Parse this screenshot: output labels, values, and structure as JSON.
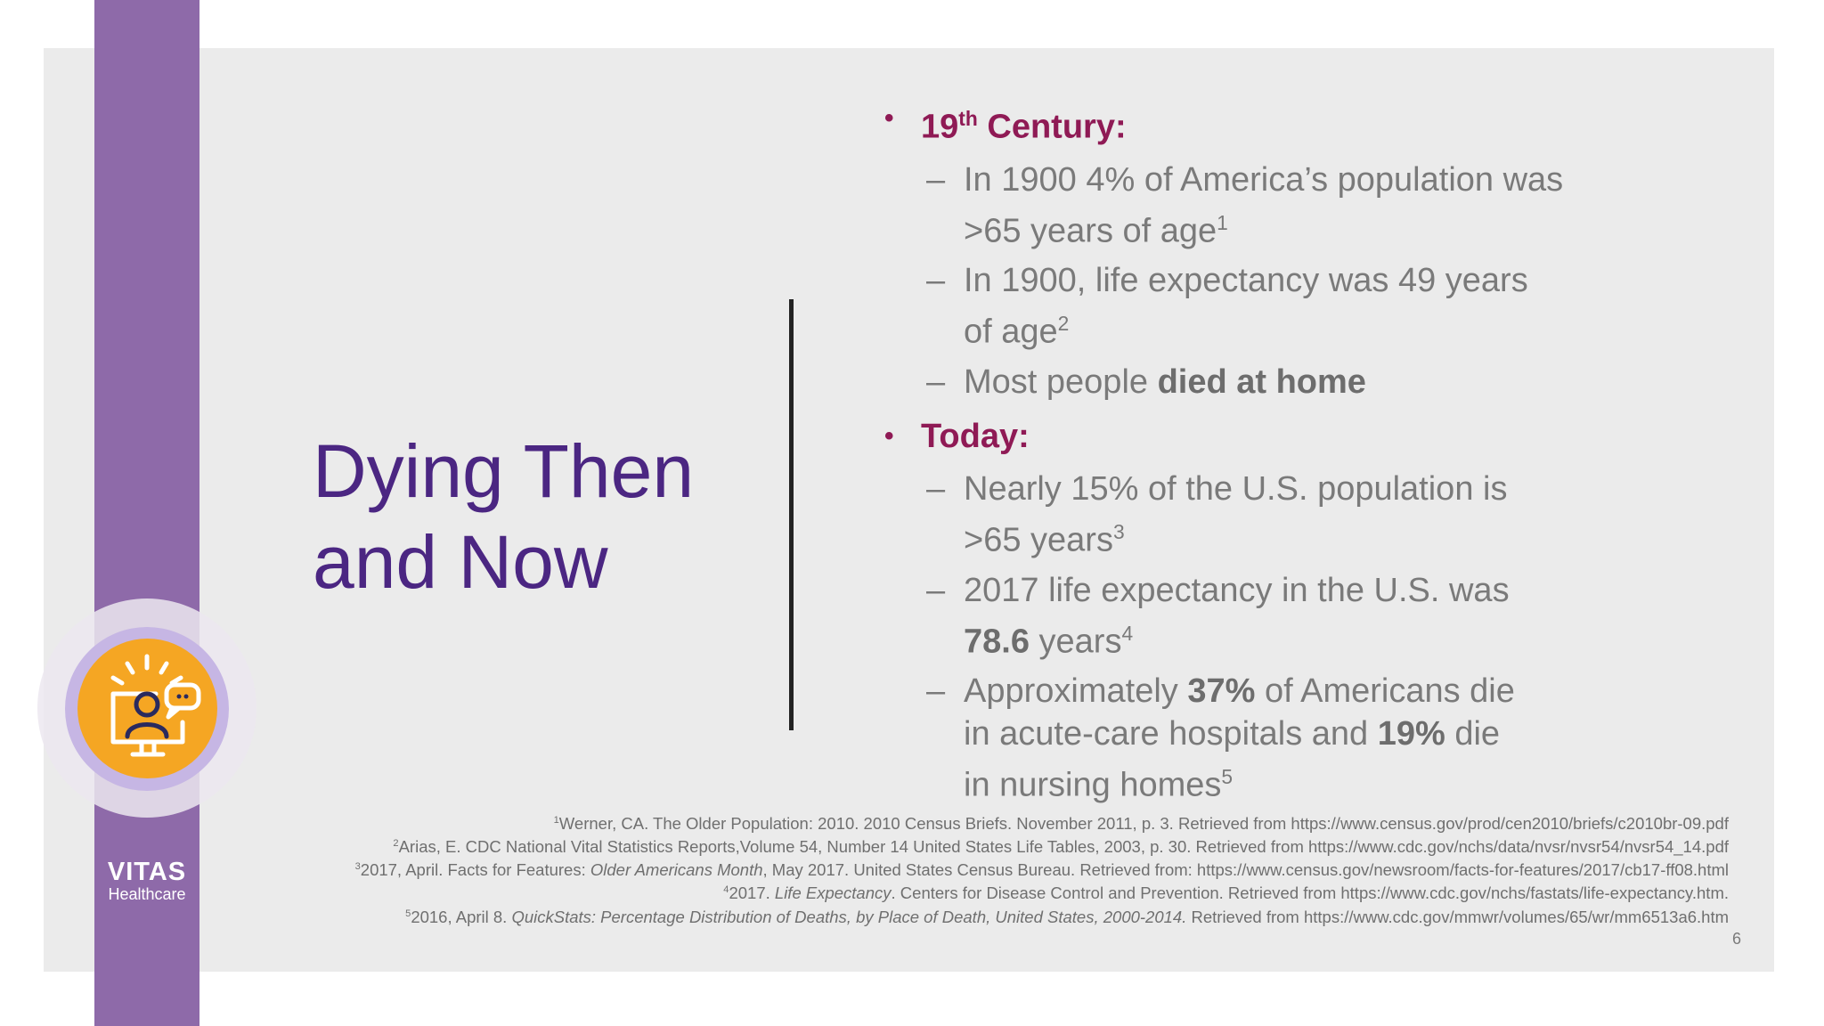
{
  "title_line1": "Dying Then",
  "title_line2": "and Now",
  "logo": {
    "name": "VITAS",
    "sub": "Healthcare"
  },
  "badge_icon": "person-at-computer-chat-icon",
  "sections": [
    {
      "heading_pre": "19",
      "heading_sup": "th",
      "heading_post": " Century:",
      "items": [
        {
          "text1": "In 1900 4% of America’s population was",
          "text2": ">65 years of age",
          "sup": "1"
        },
        {
          "text1": "In 1900, life expectancy was 49 years",
          "text2": "of age",
          "sup": "2"
        },
        {
          "text_plain": "Most people ",
          "text_bold": "died at home"
        }
      ]
    },
    {
      "heading": "Today:",
      "items": [
        {
          "text1": "Nearly 15% of the U.S. population is",
          "text2": ">65 years",
          "sup": "3"
        },
        {
          "text1": "2017 life expectancy in the U.S. was",
          "bold": "78.6",
          "text2": " years",
          "sup": "4"
        },
        {
          "p1": "Approximately ",
          "b1": "37%",
          "p2": " of Americans die",
          "p3": "in acute-care hospitals and ",
          "b2": "19%",
          "p4": " die",
          "p5": "in nursing homes",
          "sup": "5"
        }
      ]
    }
  ],
  "references": [
    {
      "sup": "1",
      "a": "Werner, CA. The Older Population: 2010. 2010 Census Briefs. November 2011, p. 3. Retrieved from https://www.census.gov/prod/cen2010/briefs/c2010br-09.pdf"
    },
    {
      "sup": "2",
      "a": "Arias, E. CDC National Vital Statistics Reports,Volume 54, Number 14 United States Life Tables, 2003, p. 30. Retrieved from https://www.cdc.gov/nchs/data/nvsr/nvsr54/nvsr54_14.pdf"
    },
    {
      "sup": "3",
      "a": "2017, April. Facts for Features: ",
      "i": "Older Americans Month",
      "b": ", May 2017. United States Census Bureau. Retrieved from: https://www.census.gov/newsroom/facts-for-features/2017/cb17-ff08.html"
    },
    {
      "sup": "4",
      "a": "2017. ",
      "i": "Life Expectancy",
      "b": ". Centers for Disease Control and Prevention. Retrieved from https://www.cdc.gov/nchs/fastats/life-expectancy.htm."
    },
    {
      "sup": "5",
      "a": "2016, April 8. ",
      "i": "QuickStats: Percentage Distribution of Deaths, by Place of Death, United States, 2000-2014.",
      "b": " Retrieved from https://www.cdc.gov/mmwr/volumes/65/wr/mm6513a6.htm"
    }
  ],
  "page_number": "6",
  "colors": {
    "stripe": "#8e6aa9",
    "title": "#4b2682",
    "heading": "#8f1a55",
    "badge": "#f5a623"
  }
}
